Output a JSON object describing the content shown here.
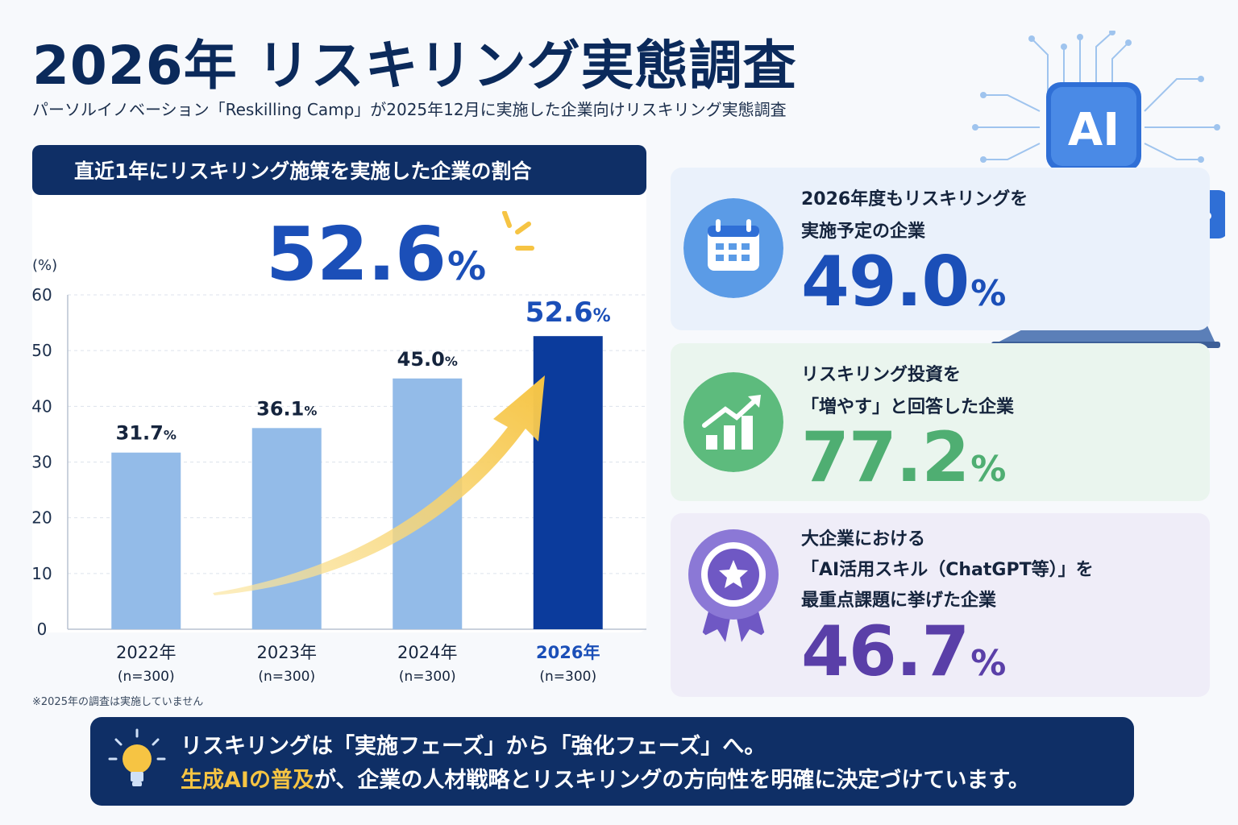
{
  "title": "2026年 リスキリング実態調査",
  "subtitle": "パーソルイノベーション「Reskilling Camp」が2025年12月に実施した企業向けリスキリング実態調査",
  "left_panel": {
    "header": "直近1年にリスキリング施策を実施した企業の割合",
    "headline_value": "52.6",
    "headline_unit": "%",
    "footnote": "※2025年の調査は実施していません"
  },
  "chart_data": {
    "type": "bar",
    "title": "直近1年にリスキリング施策を実施した企業の割合",
    "categories": [
      "2022年",
      "2023年",
      "2024年",
      "2026年"
    ],
    "sample_labels": [
      "(n=300)",
      "(n=300)",
      "(n=300)",
      "(n=300)"
    ],
    "values": [
      31.7,
      36.1,
      45.0,
      52.6
    ],
    "value_labels": [
      "31.7",
      "36.1",
      "45.0",
      "52.6"
    ],
    "unit": "%",
    "ylabel": "(%)",
    "ylim": [
      0,
      60
    ],
    "yticks": [
      0,
      10,
      20,
      30,
      40,
      50,
      60
    ],
    "grid": true,
    "trend_arrow": true,
    "colors": {
      "bar": "#93bbe8",
      "highlight": "#0b3b9c",
      "arrow": "#f6c443"
    }
  },
  "cards": [
    {
      "line1": "2026年度もリスキリングを",
      "line2": "実施予定の企業",
      "line3": "",
      "value": "49.0",
      "unit": "%",
      "icon": "calendar-icon",
      "color": "#1b4fb8"
    },
    {
      "line1": "リスキリング投資を",
      "line2": "「増やす」と回答した企業",
      "line3": "",
      "value": "77.2",
      "unit": "%",
      "icon": "growth-chart-icon",
      "color": "#4fae72"
    },
    {
      "line1": "大企業における",
      "line2": "「AI活用スキル（ChatGPT等）」を",
      "line3": "最重点課題に挙げた企業",
      "value": "46.7",
      "unit": "%",
      "icon": "award-badge-icon",
      "color": "#5a3fa8"
    }
  ],
  "ai_badge": "AI",
  "banner": {
    "line1": "リスキリングは「実施フェーズ」から「強化フェーズ」へ。",
    "line2_accent": "生成AIの普及",
    "line2_rest": "が、企業の人材戦略とリスキリングの方向性を明確に決定づけています。"
  }
}
